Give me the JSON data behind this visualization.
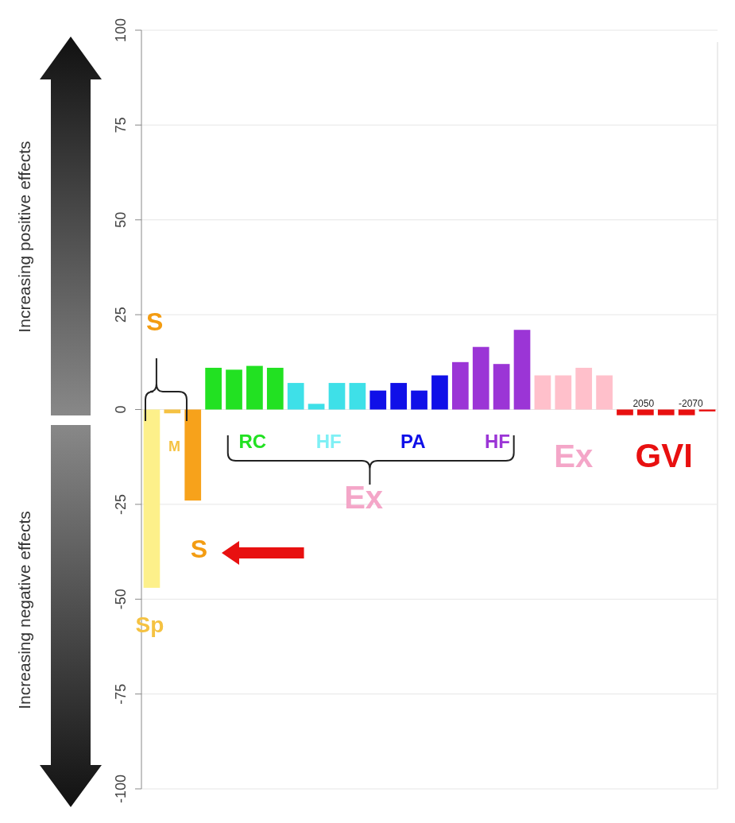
{
  "chart_data": {
    "type": "bar",
    "categories": [
      null,
      null,
      null,
      null,
      null,
      null,
      null,
      null,
      null,
      null,
      null,
      null,
      null,
      null,
      null,
      null,
      null,
      null,
      null,
      null,
      null,
      null,
      null,
      null,
      null,
      null,
      null,
      null
    ],
    "values": [
      -47,
      -1,
      -24,
      11,
      10.5,
      11.5,
      11,
      7,
      1.5,
      7,
      7,
      5,
      7,
      5,
      9,
      12.5,
      16.5,
      12,
      21,
      9,
      9,
      11,
      9,
      -1.5,
      -1.5,
      -1.5,
      -1.5,
      -0.5
    ],
    "colors": [
      "#fdf08a",
      "#f5c242",
      "#f7a21b",
      "#22e122",
      "#22e122",
      "#22e122",
      "#22e122",
      "#3ee0e8",
      "#3ee0e8",
      "#3ee0e8",
      "#3ee0e8",
      "#1010e8",
      "#1010e8",
      "#1010e8",
      "#1010e8",
      "#9b35d6",
      "#9b35d6",
      "#9b35d6",
      "#9b35d6",
      "#ffc0cb",
      "#ffc0cb",
      "#ffc0cb",
      "#ffc0cb",
      "#e81010",
      "#e81010",
      "#e81010",
      "#e81010",
      "#e81010"
    ],
    "ylim": [
      -100,
      100
    ],
    "yticks": [
      -100,
      -75,
      -50,
      -25,
      0,
      25,
      50,
      75,
      100
    ],
    "grid": "y",
    "annotations": [
      "S",
      "M",
      "Sp",
      "S",
      "RC",
      "HF",
      "PA",
      "HF",
      "Ex",
      "Ex",
      "GVI",
      "2050",
      "-2070",
      "Increasing positive effects",
      "Increasing negative effects"
    ]
  }
}
